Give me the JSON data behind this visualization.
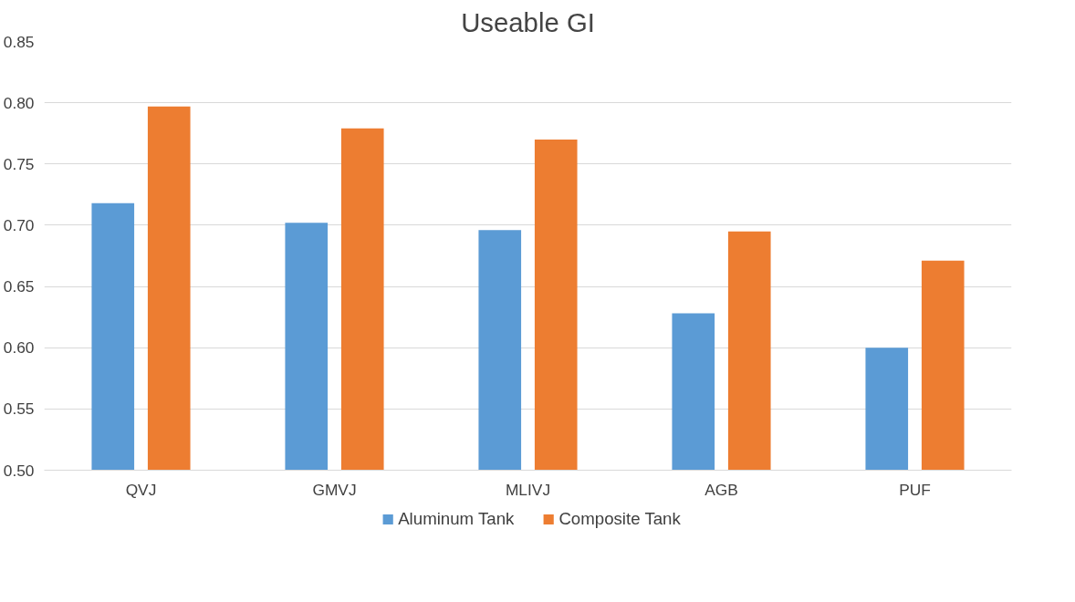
{
  "chart_data": {
    "type": "bar",
    "title": "Useable GI",
    "categories": [
      "QVJ",
      "GMVJ",
      "MLIVJ",
      "AGB",
      "PUF"
    ],
    "series": [
      {
        "name": "Aluminum Tank",
        "color": "#5b9bd5",
        "values": [
          0.718,
          0.702,
          0.696,
          0.628,
          0.6
        ]
      },
      {
        "name": "Composite Tank",
        "color": "#ed7d31",
        "values": [
          0.797,
          0.779,
          0.77,
          0.695,
          0.671
        ]
      }
    ],
    "ylim": [
      0.5,
      0.85
    ],
    "yticks": [
      {
        "value": 0.5,
        "label": "0.50"
      },
      {
        "value": 0.55,
        "label": "0.55"
      },
      {
        "value": 0.6,
        "label": "0.60"
      },
      {
        "value": 0.65,
        "label": "0.65"
      },
      {
        "value": 0.7,
        "label": "0.70"
      },
      {
        "value": 0.75,
        "label": "0.75"
      },
      {
        "value": 0.8,
        "label": "0.80"
      },
      {
        "value": 0.85,
        "label": "0.85"
      }
    ],
    "grid": "y",
    "legend": "bottom"
  }
}
